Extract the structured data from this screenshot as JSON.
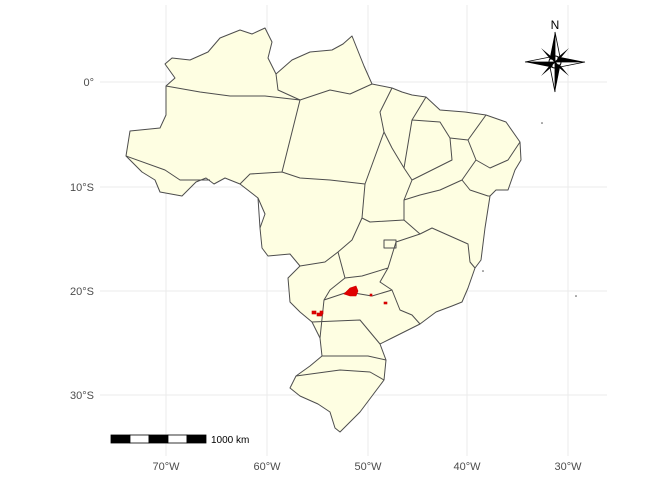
{
  "map": {
    "fill_color": "#fefee2",
    "border_color": "#4d4d4d",
    "occurrence_color": "#e00000",
    "grid_color": "#ebebeb"
  },
  "axes": {
    "x_ticks": [
      "70°W",
      "60°W",
      "50°W",
      "40°W",
      "30°W"
    ],
    "y_ticks": [
      "0°",
      "10°S",
      "20°S",
      "30°S"
    ]
  },
  "north_arrow": {
    "label": "N",
    "icon": "compass-rose-icon"
  },
  "scale_bar": {
    "label": "1000 km"
  }
}
